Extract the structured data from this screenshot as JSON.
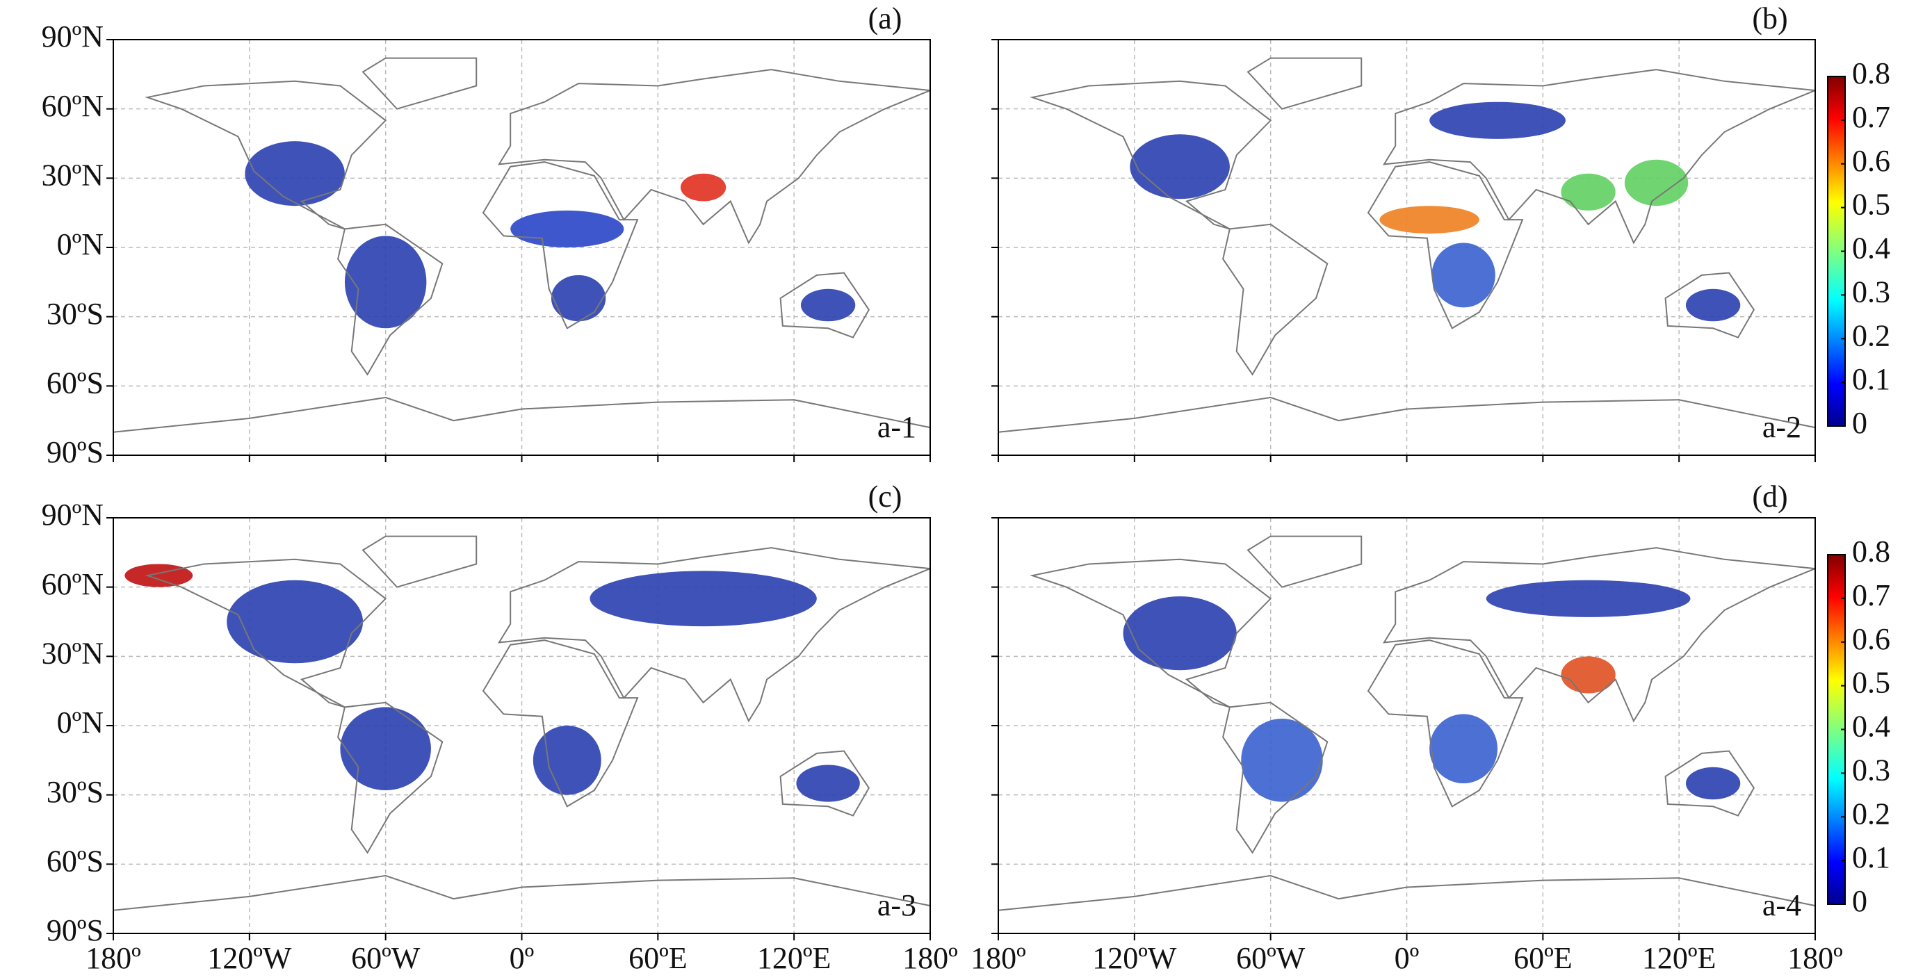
{
  "panels": [
    {
      "letter": "(a)",
      "label": "a-1"
    },
    {
      "letter": "(b)",
      "label": "a-2"
    },
    {
      "letter": "(c)",
      "label": "a-3"
    },
    {
      "letter": "(d)",
      "label": "a-4"
    }
  ],
  "lat_ticks": [
    {
      "value": 90,
      "label": "90ºN"
    },
    {
      "value": 60,
      "label": "60ºN"
    },
    {
      "value": 30,
      "label": "30ºN"
    },
    {
      "value": 0,
      "label": "0ºN"
    },
    {
      "value": -30,
      "label": "30ºS"
    },
    {
      "value": -60,
      "label": "60ºS"
    },
    {
      "value": -90,
      "label": "90ºS"
    }
  ],
  "lon_ticks": [
    {
      "value": -180,
      "label": "180º"
    },
    {
      "value": -120,
      "label": "120ºW"
    },
    {
      "value": -60,
      "label": "60ºW"
    },
    {
      "value": 0,
      "label": "0º"
    },
    {
      "value": 60,
      "label": "60ºE"
    },
    {
      "value": 120,
      "label": "120ºE"
    },
    {
      "value": 180,
      "label": "180º"
    }
  ],
  "colorbar": {
    "ticks": [
      0,
      0.1,
      0.2,
      0.3,
      0.4,
      0.5,
      0.6,
      0.7,
      0.8
    ]
  }
}
